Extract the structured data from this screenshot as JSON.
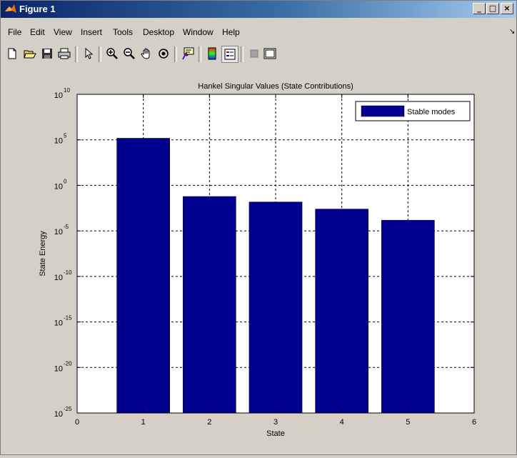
{
  "window": {
    "title": "Figure 1",
    "buttons": {
      "minimize": "_",
      "maximize": "□",
      "close": "×"
    }
  },
  "menu": {
    "items": [
      "File",
      "Edit",
      "View",
      "Insert",
      "Tools",
      "Desktop",
      "Window",
      "Help"
    ],
    "dock_arrow": "↘"
  },
  "toolbar": {
    "icons": [
      "new-figure-icon",
      "open-file-icon",
      "save-icon",
      "print-icon",
      "select-arrow-icon",
      "zoom-in-icon",
      "zoom-out-icon",
      "pan-hand-icon",
      "rotate-3d-icon",
      "data-cursor-icon",
      "colorbar-icon",
      "legend-icon",
      "hide-plot-tools-icon",
      "show-plot-tools-icon"
    ]
  },
  "chart_data": {
    "type": "bar",
    "title": "Hankel Singular Values (State Contributions)",
    "xlabel": "State",
    "ylabel": "State Energy",
    "x": [
      1,
      2,
      3,
      4,
      5
    ],
    "values": [
      150000,
      0.06,
      0.015,
      0.0025,
      0.00015
    ],
    "yscale": "log",
    "ylim": [
      1e-25,
      10000000000.0
    ],
    "xlim": [
      0,
      6
    ],
    "xticks": [
      "0",
      "1",
      "2",
      "3",
      "4",
      "5",
      "6"
    ],
    "yticks_exponents": [
      "10",
      "5",
      "0",
      "-5",
      "-10",
      "-15",
      "-20",
      "-25"
    ],
    "ytick_base": "10",
    "grid": true,
    "series": [
      {
        "name": "Stable modes",
        "color": "#00008f"
      }
    ],
    "legend_position": "top-right"
  }
}
